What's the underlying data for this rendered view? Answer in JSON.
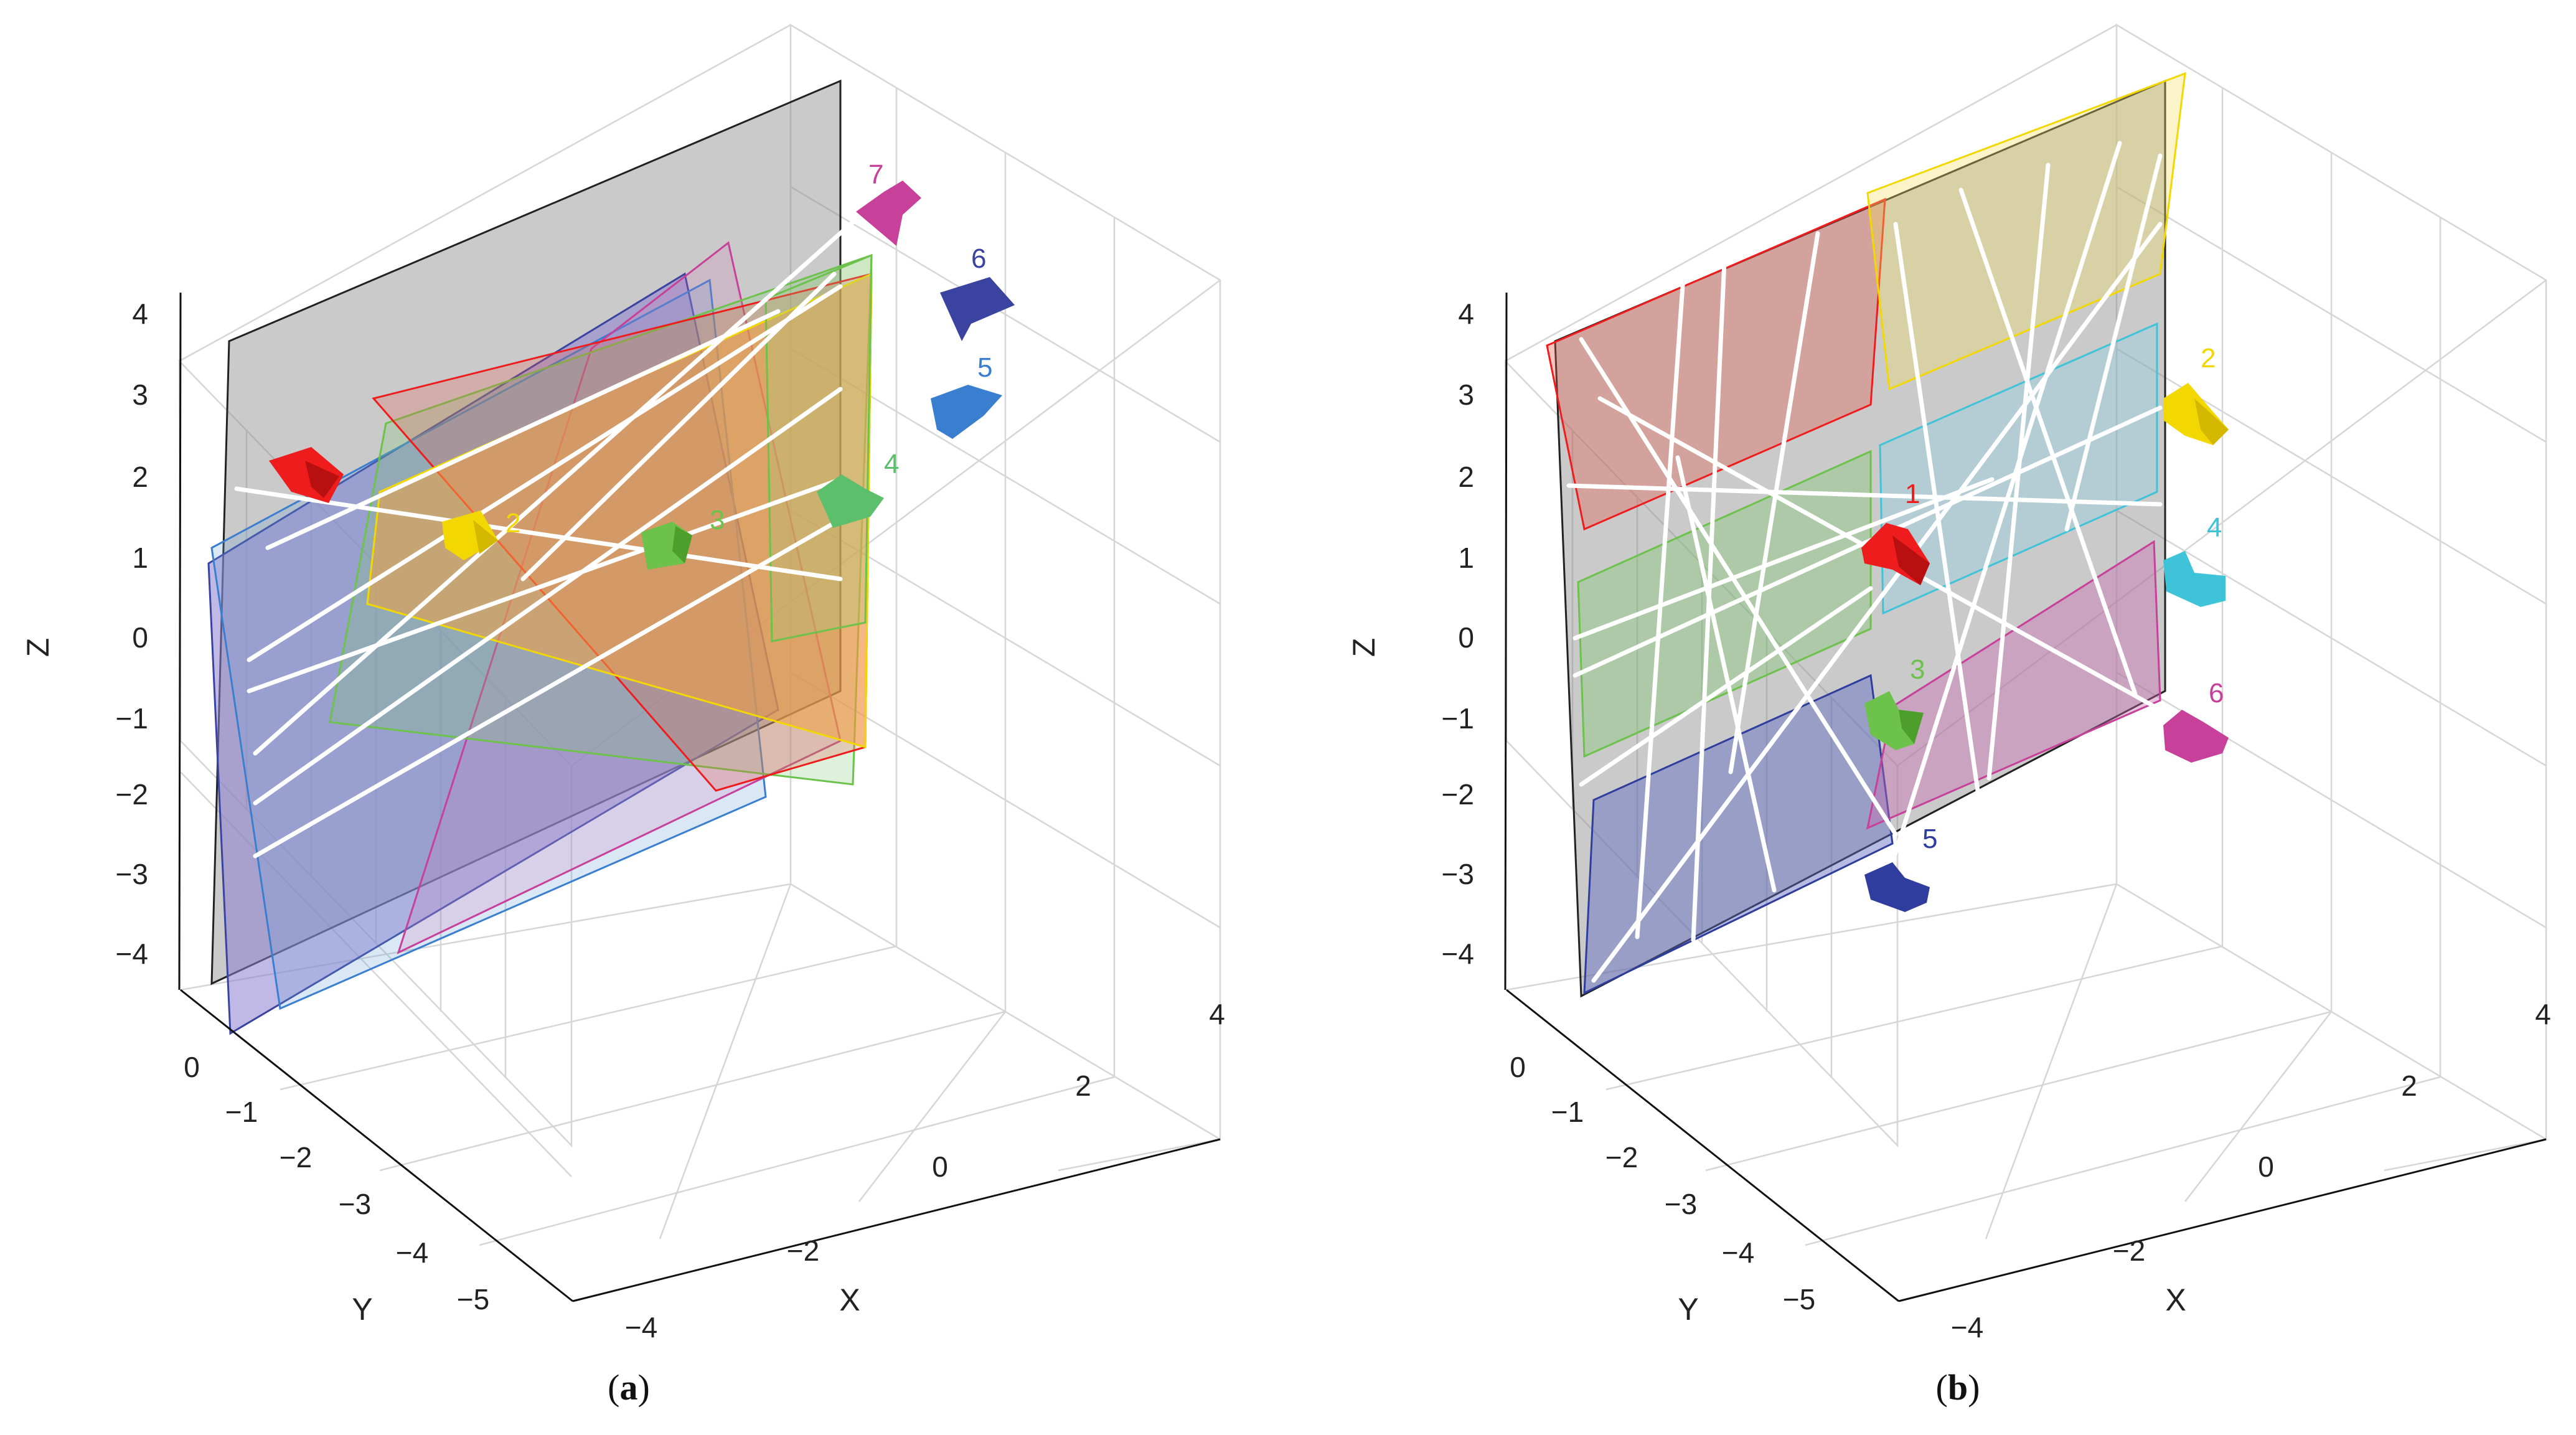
{
  "figure": {
    "panels": [
      {
        "id": "a",
        "caption_text": "a",
        "chart_data": {
          "type": "scatter",
          "title": "",
          "xlabel": "X",
          "ylabel": "Y",
          "zlabel": "Z",
          "x_ticks": [
            "−4",
            "−2",
            "0",
            "2",
            "4"
          ],
          "y_ticks": [
            "0",
            "−1",
            "−2",
            "−3",
            "−4",
            "−5"
          ],
          "z_ticks": [
            "4",
            "3",
            "2",
            "1",
            "0",
            "−1",
            "−2",
            "−3",
            "−4"
          ],
          "xlim": [
            -4,
            4
          ],
          "ylim": [
            -5,
            0
          ],
          "zlim": [
            -4,
            4
          ],
          "cameras": [
            {
              "label": "",
              "color": "#ee1c1c"
            },
            {
              "label": "2",
              "color": "#f2d800"
            },
            {
              "label": "3",
              "color": "#6cc24a"
            },
            {
              "label": "4",
              "color": "#5cbf6c"
            },
            {
              "label": "5",
              "color": "#3a7fcf"
            },
            {
              "label": "6",
              "color": "#3a43a0"
            },
            {
              "label": "7",
              "color": "#c7409a"
            }
          ]
        }
      },
      {
        "id": "b",
        "caption_text": "b",
        "chart_data": {
          "type": "scatter",
          "title": "",
          "xlabel": "X",
          "ylabel": "Y",
          "zlabel": "Z",
          "x_ticks": [
            "−4",
            "−2",
            "0",
            "2",
            "4"
          ],
          "y_ticks": [
            "0",
            "−1",
            "−2",
            "−3",
            "−4",
            "−5"
          ],
          "z_ticks": [
            "4",
            "3",
            "2",
            "1",
            "0",
            "−1",
            "−2",
            "−3",
            "−4"
          ],
          "xlim": [
            -4,
            4
          ],
          "ylim": [
            -5,
            0
          ],
          "zlim": [
            -4,
            4
          ],
          "cameras": [
            {
              "label": "1",
              "color": "#ee1c1c"
            },
            {
              "label": "2",
              "color": "#f2d800"
            },
            {
              "label": "3",
              "color": "#6cc24a"
            },
            {
              "label": "4",
              "color": "#3fc3d8"
            },
            {
              "label": "5",
              "color": "#2e3d9e"
            },
            {
              "label": "6",
              "color": "#c7409a"
            }
          ]
        }
      }
    ]
  }
}
